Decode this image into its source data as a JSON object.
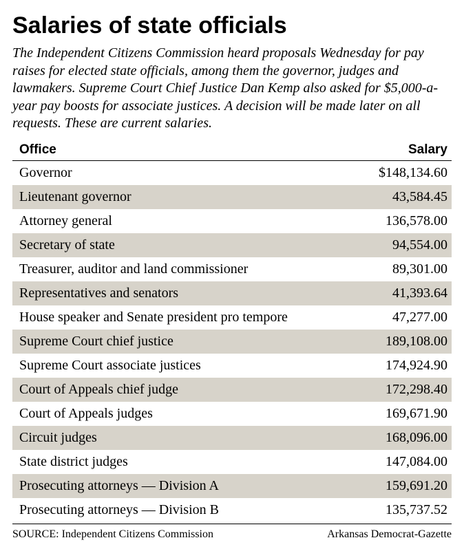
{
  "title": "Salaries of state officials",
  "intro": "The Independent Citizens Commission heard proposals Wednesday for pay raises for elected state officials, among them the governor, judges and lawmakers. Supreme Court Chief Justice Dan Kemp also asked for $5,000-a-year pay boosts for associate justices. A decision will be made later on all requests. These are current salaries.",
  "table": {
    "headers": {
      "office": "Office",
      "salary": "Salary"
    },
    "rows": [
      {
        "office": "Governor",
        "salary": "$148,134.60"
      },
      {
        "office": "Lieutenant governor",
        "salary": "43,584.45"
      },
      {
        "office": "Attorney general",
        "salary": "136,578.00"
      },
      {
        "office": "Secretary of state",
        "salary": "94,554.00"
      },
      {
        "office": "Treasurer,  auditor and land commissioner",
        "salary": "89,301.00"
      },
      {
        "office": "Representatives and senators",
        "salary": "41,393.64"
      },
      {
        "office": "House speaker and Senate president pro tempore",
        "salary": "47,277.00"
      },
      {
        "office": "Supreme Court chief justice",
        "salary": "189,108.00"
      },
      {
        "office": "Supreme Court associate justices",
        "salary": "174,924.90"
      },
      {
        "office": "Court of Appeals chief judge",
        "salary": "172,298.40"
      },
      {
        "office": "Court of Appeals judges",
        "salary": "169,671.90"
      },
      {
        "office": "Circuit judges",
        "salary": "168,096.00"
      },
      {
        "office": "State district judges",
        "salary": "147,084.00"
      },
      {
        "office": "Prosecuting attorneys — Division A",
        "salary": "159,691.20"
      },
      {
        "office": "Prosecuting attorneys — Division B",
        "salary": "135,737.52"
      }
    ],
    "row_shade_color": "#d7d3ca",
    "background_color": "#ffffff"
  },
  "footer": {
    "source_label": "SOURCE: ",
    "source_value": "Independent Citizens Commission",
    "publication": "Arkansas Democrat-Gazette"
  }
}
